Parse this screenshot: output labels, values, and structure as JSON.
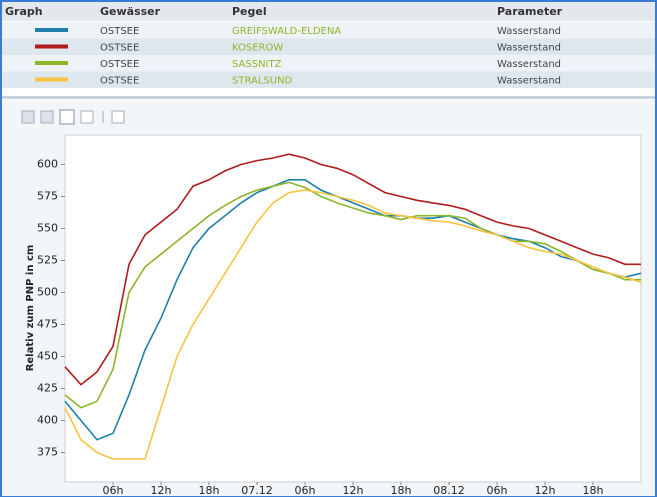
{
  "table": {
    "columns": [
      "Graph",
      "Gewässer",
      "Pegel",
      "Parameter"
    ],
    "rows": [
      [
        "OSTSEE",
        "GREIFSWALD-ELDENA",
        "Wasserstand"
      ],
      [
        "OSTSEE",
        "KOSEROW",
        "Wasserstand"
      ],
      [
        "OSTSEE",
        "SASSNITZ",
        "Wasserstand"
      ],
      [
        "OSTSEE",
        "STRALSUND",
        "Wasserstand"
      ]
    ]
  },
  "chart_data": {
    "type": "line",
    "y_label": "Relativ zum PNP in cm",
    "x": [
      0,
      2,
      4,
      6,
      8,
      10,
      12,
      14,
      16,
      18,
      20,
      22,
      24,
      26,
      28,
      30,
      32,
      34,
      36,
      38,
      40,
      42,
      44,
      46,
      48,
      50,
      52,
      54,
      56,
      58,
      60,
      62,
      64,
      66,
      68,
      70,
      72
    ],
    "series": [
      {
        "color": "#1f7fa8",
        "values": [
          415,
          400,
          385,
          390,
          420,
          455,
          480,
          510,
          535,
          550,
          560,
          570,
          578,
          583,
          588,
          588,
          580,
          575,
          570,
          565,
          560,
          560,
          558,
          558,
          560,
          555,
          550,
          545,
          542,
          540,
          535,
          528,
          525,
          518,
          515,
          512,
          515
        ]
      },
      {
        "color": "#b01c1c",
        "values": [
          442,
          428,
          438,
          458,
          522,
          545,
          555,
          565,
          583,
          588,
          595,
          600,
          603,
          605,
          608,
          605,
          600,
          597,
          592,
          585,
          578,
          575,
          572,
          570,
          568,
          565,
          560,
          555,
          552,
          550,
          545,
          540,
          535,
          530,
          527,
          522,
          522
        ]
      },
      {
        "color": "#8db52a",
        "values": [
          420,
          410,
          415,
          440,
          500,
          520,
          530,
          540,
          550,
          560,
          568,
          575,
          580,
          583,
          586,
          582,
          575,
          570,
          566,
          562,
          560,
          557,
          560,
          560,
          560,
          558,
          550,
          545,
          540,
          540,
          538,
          532,
          525,
          518,
          515,
          510,
          510
        ]
      },
      {
        "color": "#f7c442",
        "values": [
          410,
          385,
          375,
          370,
          370,
          370,
          410,
          450,
          475,
          495,
          515,
          535,
          555,
          570,
          578,
          580,
          578,
          575,
          572,
          568,
          562,
          560,
          558,
          556,
          555,
          552,
          548,
          545,
          540,
          535,
          532,
          530,
          525,
          520,
          515,
          512,
          508
        ]
      }
    ],
    "xlim": [
      0,
      72
    ],
    "xticks": [
      {
        "value": 6,
        "label": "06h"
      },
      {
        "value": 12,
        "label": "12h"
      },
      {
        "value": 18,
        "label": "18h"
      },
      {
        "value": 24,
        "label": "07.12"
      },
      {
        "value": 30,
        "label": "06h"
      },
      {
        "value": 36,
        "label": "12h"
      },
      {
        "value": 42,
        "label": "18h"
      },
      {
        "value": 48,
        "label": "08.12"
      },
      {
        "value": 54,
        "label": "06h"
      },
      {
        "value": 60,
        "label": "12h"
      },
      {
        "value": 66,
        "label": "18h"
      }
    ],
    "ylim": [
      352,
      623
    ],
    "yticks": [
      375,
      400,
      425,
      450,
      475,
      500,
      525,
      550,
      575,
      600
    ]
  }
}
